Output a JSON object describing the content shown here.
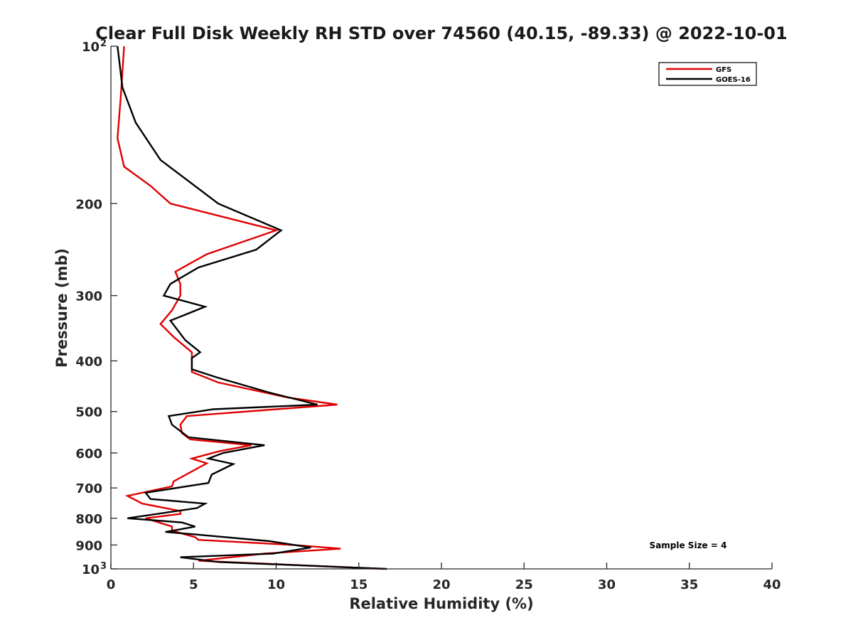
{
  "chart_data": {
    "type": "line",
    "title": "Clear Full Disk Weekly RH STD over 74560 (40.15, -89.33) @ 2022-10-01",
    "xlabel": "Relative Humidity (%)",
    "ylabel": "Pressure (mb)",
    "xlim": [
      0,
      40
    ],
    "ylim": [
      100,
      1000
    ],
    "y_scale": "log",
    "y_reversed": true,
    "x_ticks": [
      "0",
      "5",
      "10",
      "15",
      "20",
      "25",
      "30",
      "35",
      "40"
    ],
    "x_tick_values": [
      0,
      5,
      10,
      15,
      20,
      25,
      30,
      35,
      40
    ],
    "y_ticks": [
      {
        "value": 100,
        "label": "10",
        "sup": "2"
      },
      {
        "value": 200,
        "label": "200",
        "sup": ""
      },
      {
        "value": 300,
        "label": "300",
        "sup": ""
      },
      {
        "value": 400,
        "label": "400",
        "sup": ""
      },
      {
        "value": 500,
        "label": "500",
        "sup": ""
      },
      {
        "value": 600,
        "label": "600",
        "sup": ""
      },
      {
        "value": 700,
        "label": "700",
        "sup": ""
      },
      {
        "value": 800,
        "label": "800",
        "sup": ""
      },
      {
        "value": 900,
        "label": "900",
        "sup": ""
      },
      {
        "value": 1000,
        "label": "10",
        "sup": "3"
      }
    ],
    "legend_position": "top-right",
    "grid": false,
    "annotation": "Sample Size = 4",
    "series": [
      {
        "name": "GFS",
        "color": "#e00000",
        "points": [
          [
            0.8,
            100
          ],
          [
            0.6,
            125
          ],
          [
            0.4,
            150
          ],
          [
            0.8,
            170
          ],
          [
            2.4,
            185
          ],
          [
            3.6,
            200
          ],
          [
            10.0,
            225
          ],
          [
            5.8,
            250
          ],
          [
            3.9,
            270
          ],
          [
            4.2,
            285
          ],
          [
            4.2,
            300
          ],
          [
            3.7,
            320
          ],
          [
            3.0,
            340
          ],
          [
            3.8,
            360
          ],
          [
            4.9,
            385
          ],
          [
            4.9,
            400
          ],
          [
            4.9,
            420
          ],
          [
            6.5,
            440
          ],
          [
            10.7,
            470
          ],
          [
            13.7,
            485
          ],
          [
            10.0,
            495
          ],
          [
            4.6,
            510
          ],
          [
            4.2,
            530
          ],
          [
            4.3,
            550
          ],
          [
            4.8,
            565
          ],
          [
            8.5,
            580
          ],
          [
            6.6,
            595
          ],
          [
            4.9,
            615
          ],
          [
            5.8,
            628
          ],
          [
            3.8,
            680
          ],
          [
            3.7,
            695
          ],
          [
            1.0,
            725
          ],
          [
            1.9,
            750
          ],
          [
            4.2,
            775
          ],
          [
            4.2,
            785
          ],
          [
            2.1,
            800
          ],
          [
            3.7,
            830
          ],
          [
            3.7,
            845
          ],
          [
            5.1,
            870
          ],
          [
            5.3,
            880
          ],
          [
            11.1,
            900
          ],
          [
            13.9,
            915
          ],
          [
            9.3,
            935
          ],
          [
            5.3,
            965
          ],
          [
            16.5,
            1000
          ]
        ]
      },
      {
        "name": "GOES-16",
        "color": "#000000",
        "points": [
          [
            0.4,
            100
          ],
          [
            0.7,
            120
          ],
          [
            1.5,
            140
          ],
          [
            3.0,
            165
          ],
          [
            6.5,
            200
          ],
          [
            10.3,
            225
          ],
          [
            8.8,
            245
          ],
          [
            5.3,
            265
          ],
          [
            3.6,
            285
          ],
          [
            3.2,
            300
          ],
          [
            5.7,
            315
          ],
          [
            3.6,
            335
          ],
          [
            4.5,
            365
          ],
          [
            5.4,
            385
          ],
          [
            4.9,
            395
          ],
          [
            4.9,
            415
          ],
          [
            6.4,
            430
          ],
          [
            9.6,
            460
          ],
          [
            12.5,
            485
          ],
          [
            6.2,
            495
          ],
          [
            3.5,
            510
          ],
          [
            3.7,
            530
          ],
          [
            4.7,
            560
          ],
          [
            9.3,
            580
          ],
          [
            6.8,
            600
          ],
          [
            5.9,
            615
          ],
          [
            7.4,
            630
          ],
          [
            6.1,
            660
          ],
          [
            5.9,
            685
          ],
          [
            2.1,
            715
          ],
          [
            2.4,
            735
          ],
          [
            5.7,
            750
          ],
          [
            5.2,
            765
          ],
          [
            1.0,
            800
          ],
          [
            4.3,
            815
          ],
          [
            5.1,
            830
          ],
          [
            3.3,
            850
          ],
          [
            5.3,
            860
          ],
          [
            9.6,
            885
          ],
          [
            12.1,
            910
          ],
          [
            9.8,
            935
          ],
          [
            4.2,
            950
          ],
          [
            6.5,
            970
          ],
          [
            16.7,
            1000
          ]
        ]
      }
    ]
  }
}
